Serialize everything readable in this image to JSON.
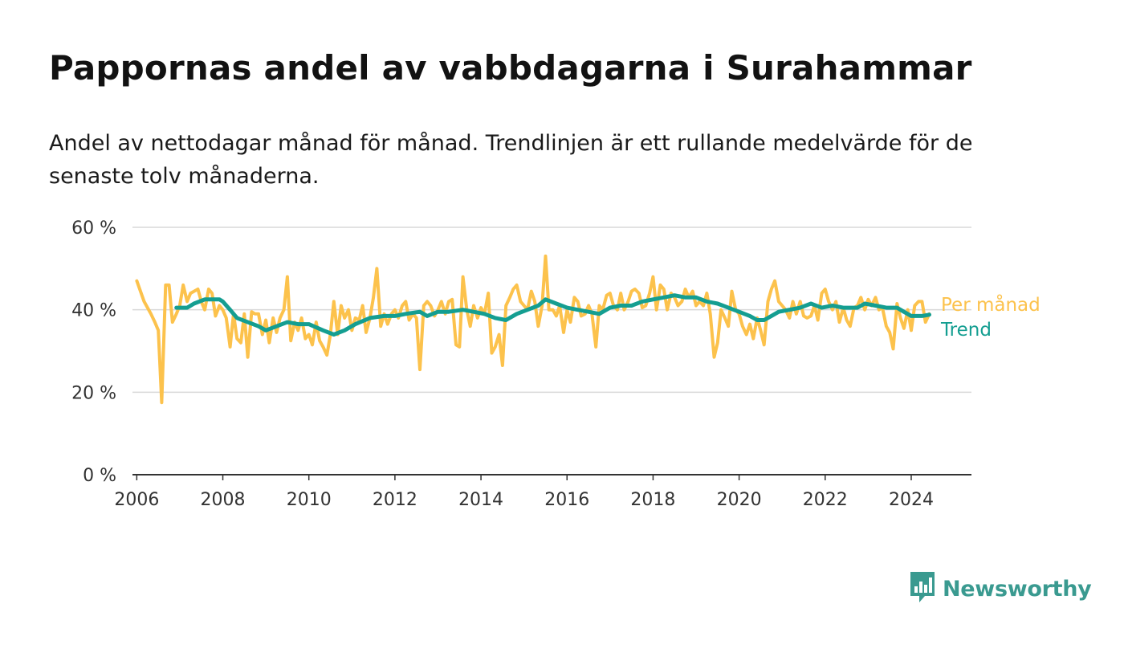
{
  "title": "Pappornas andel av vabbdagarna i Surahammar",
  "subtitle": "Andel av nettodagar månad för månad. Trendlinjen är ett rullande medelvärde för de senaste tolv månaderna.",
  "brand": {
    "name": "Newsworthy",
    "icon": "newsworthy-logo-icon",
    "color": "#3a9a90"
  },
  "chart_data": {
    "type": "line",
    "xlim": [
      2005.9,
      2025.4
    ],
    "ylim": [
      0,
      60
    ],
    "y_ticks": [
      0,
      20,
      40,
      60
    ],
    "y_tick_labels": [
      "0 %",
      "20 %",
      "40 %",
      "60 %"
    ],
    "x_ticks": [
      2006,
      2008,
      2010,
      2012,
      2014,
      2016,
      2018,
      2020,
      2022,
      2024
    ],
    "x_tick_labels": [
      "2006",
      "2008",
      "2010",
      "2012",
      "2014",
      "2016",
      "2018",
      "2020",
      "2022",
      "2024"
    ],
    "grid": true,
    "legend": "right, at line ends",
    "series": [
      {
        "name": "Per månad",
        "color": "#fcc24c",
        "points": [
          [
            2006.0,
            47.0
          ],
          [
            2006.17,
            42.0
          ],
          [
            2006.33,
            39.0
          ],
          [
            2006.42,
            37.0
          ],
          [
            2006.5,
            35.0
          ],
          [
            2006.58,
            17.5
          ],
          [
            2006.67,
            46.0
          ],
          [
            2006.75,
            46.0
          ],
          [
            2006.83,
            37.0
          ],
          [
            2006.92,
            39.0
          ],
          [
            2007.0,
            41.0
          ],
          [
            2007.08,
            46.0
          ],
          [
            2007.17,
            42.0
          ],
          [
            2007.25,
            44.0
          ],
          [
            2007.42,
            45.0
          ],
          [
            2007.5,
            42.0
          ],
          [
            2007.58,
            40.0
          ],
          [
            2007.67,
            45.0
          ],
          [
            2007.75,
            44.0
          ],
          [
            2007.83,
            38.5
          ],
          [
            2007.92,
            41.0
          ],
          [
            2008.0,
            40.0
          ],
          [
            2008.08,
            38.0
          ],
          [
            2008.17,
            31.0
          ],
          [
            2008.25,
            39.0
          ],
          [
            2008.33,
            33.0
          ],
          [
            2008.42,
            32.0
          ],
          [
            2008.5,
            39.0
          ],
          [
            2008.58,
            28.5
          ],
          [
            2008.67,
            39.5
          ],
          [
            2008.75,
            39.0
          ],
          [
            2008.83,
            39.0
          ],
          [
            2008.92,
            34.0
          ],
          [
            2009.0,
            37.5
          ],
          [
            2009.08,
            32.0
          ],
          [
            2009.17,
            38.0
          ],
          [
            2009.25,
            34.5
          ],
          [
            2009.33,
            38.0
          ],
          [
            2009.42,
            40.0
          ],
          [
            2009.5,
            48.0
          ],
          [
            2009.58,
            32.5
          ],
          [
            2009.67,
            37.0
          ],
          [
            2009.75,
            35.0
          ],
          [
            2009.83,
            38.0
          ],
          [
            2009.92,
            33.0
          ],
          [
            2010.0,
            34.0
          ],
          [
            2010.08,
            31.5
          ],
          [
            2010.17,
            37.0
          ],
          [
            2010.25,
            32.5
          ],
          [
            2010.33,
            31.0
          ],
          [
            2010.42,
            29.0
          ],
          [
            2010.5,
            34.0
          ],
          [
            2010.58,
            42.0
          ],
          [
            2010.67,
            34.0
          ],
          [
            2010.75,
            41.0
          ],
          [
            2010.83,
            38.0
          ],
          [
            2010.92,
            40.0
          ],
          [
            2011.0,
            35.0
          ],
          [
            2011.08,
            38.0
          ],
          [
            2011.17,
            37.5
          ],
          [
            2011.25,
            41.0
          ],
          [
            2011.33,
            34.5
          ],
          [
            2011.42,
            38.0
          ],
          [
            2011.5,
            43.0
          ],
          [
            2011.58,
            50.0
          ],
          [
            2011.67,
            36.0
          ],
          [
            2011.75,
            39.0
          ],
          [
            2011.83,
            36.5
          ],
          [
            2011.92,
            39.0
          ],
          [
            2012.0,
            40.0
          ],
          [
            2012.08,
            38.0
          ],
          [
            2012.17,
            41.0
          ],
          [
            2012.25,
            42.0
          ],
          [
            2012.33,
            37.5
          ],
          [
            2012.42,
            39.0
          ],
          [
            2012.5,
            38.0
          ],
          [
            2012.58,
            25.5
          ],
          [
            2012.67,
            41.0
          ],
          [
            2012.75,
            42.0
          ],
          [
            2012.83,
            41.0
          ],
          [
            2012.92,
            38.5
          ],
          [
            2013.0,
            40.0
          ],
          [
            2013.08,
            42.0
          ],
          [
            2013.17,
            39.0
          ],
          [
            2013.25,
            42.0
          ],
          [
            2013.33,
            42.5
          ],
          [
            2013.42,
            31.5
          ],
          [
            2013.5,
            31.0
          ],
          [
            2013.58,
            48.0
          ],
          [
            2013.67,
            40.0
          ],
          [
            2013.75,
            36.0
          ],
          [
            2013.83,
            41.0
          ],
          [
            2013.92,
            38.0
          ],
          [
            2014.0,
            40.5
          ],
          [
            2014.08,
            39.0
          ],
          [
            2014.17,
            44.0
          ],
          [
            2014.25,
            29.5
          ],
          [
            2014.33,
            31.0
          ],
          [
            2014.42,
            34.0
          ],
          [
            2014.5,
            26.5
          ],
          [
            2014.58,
            41.0
          ],
          [
            2014.67,
            43.0
          ],
          [
            2014.75,
            45.0
          ],
          [
            2014.83,
            46.0
          ],
          [
            2014.92,
            42.0
          ],
          [
            2015.0,
            41.0
          ],
          [
            2015.08,
            40.0
          ],
          [
            2015.17,
            44.5
          ],
          [
            2015.25,
            42.0
          ],
          [
            2015.33,
            36.0
          ],
          [
            2015.42,
            41.0
          ],
          [
            2015.5,
            53.0
          ],
          [
            2015.58,
            40.0
          ],
          [
            2015.67,
            40.0
          ],
          [
            2015.75,
            38.5
          ],
          [
            2015.83,
            41.0
          ],
          [
            2015.92,
            34.5
          ],
          [
            2016.0,
            40.0
          ],
          [
            2016.08,
            37.0
          ],
          [
            2016.17,
            43.0
          ],
          [
            2016.25,
            42.0
          ],
          [
            2016.33,
            38.5
          ],
          [
            2016.42,
            39.0
          ],
          [
            2016.5,
            41.0
          ],
          [
            2016.58,
            39.0
          ],
          [
            2016.67,
            31.0
          ],
          [
            2016.75,
            41.0
          ],
          [
            2016.83,
            40.0
          ],
          [
            2016.92,
            43.5
          ],
          [
            2017.0,
            44.0
          ],
          [
            2017.08,
            41.0
          ],
          [
            2017.17,
            40.0
          ],
          [
            2017.25,
            44.0
          ],
          [
            2017.33,
            40.0
          ],
          [
            2017.42,
            42.0
          ],
          [
            2017.5,
            44.5
          ],
          [
            2017.58,
            45.0
          ],
          [
            2017.67,
            44.0
          ],
          [
            2017.75,
            40.5
          ],
          [
            2017.83,
            41.0
          ],
          [
            2017.92,
            44.0
          ],
          [
            2018.0,
            48.0
          ],
          [
            2018.08,
            40.0
          ],
          [
            2018.17,
            46.0
          ],
          [
            2018.25,
            45.0
          ],
          [
            2018.33,
            40.0
          ],
          [
            2018.42,
            44.0
          ],
          [
            2018.5,
            43.0
          ],
          [
            2018.58,
            41.0
          ],
          [
            2018.67,
            42.0
          ],
          [
            2018.75,
            45.0
          ],
          [
            2018.83,
            43.0
          ],
          [
            2018.92,
            44.5
          ],
          [
            2019.0,
            41.0
          ],
          [
            2019.08,
            42.0
          ],
          [
            2019.17,
            41.0
          ],
          [
            2019.25,
            44.0
          ],
          [
            2019.33,
            39.0
          ],
          [
            2019.42,
            28.5
          ],
          [
            2019.5,
            32.0
          ],
          [
            2019.58,
            40.0
          ],
          [
            2019.67,
            38.0
          ],
          [
            2019.75,
            36.0
          ],
          [
            2019.83,
            44.5
          ],
          [
            2019.92,
            40.0
          ],
          [
            2020.0,
            39.0
          ],
          [
            2020.08,
            36.0
          ],
          [
            2020.17,
            34.0
          ],
          [
            2020.25,
            36.5
          ],
          [
            2020.33,
            33.0
          ],
          [
            2020.42,
            38.0
          ],
          [
            2020.5,
            35.0
          ],
          [
            2020.58,
            31.5
          ],
          [
            2020.67,
            42.0
          ],
          [
            2020.75,
            45.0
          ],
          [
            2020.83,
            47.0
          ],
          [
            2020.92,
            42.0
          ],
          [
            2021.0,
            41.0
          ],
          [
            2021.08,
            40.0
          ],
          [
            2021.17,
            38.0
          ],
          [
            2021.25,
            42.0
          ],
          [
            2021.33,
            39.0
          ],
          [
            2021.42,
            42.0
          ],
          [
            2021.5,
            38.5
          ],
          [
            2021.58,
            38.0
          ],
          [
            2021.67,
            38.5
          ],
          [
            2021.75,
            41.0
          ],
          [
            2021.83,
            37.5
          ],
          [
            2021.92,
            44.0
          ],
          [
            2022.0,
            45.0
          ],
          [
            2022.08,
            42.0
          ],
          [
            2022.17,
            40.0
          ],
          [
            2022.25,
            42.0
          ],
          [
            2022.33,
            37.0
          ],
          [
            2022.42,
            40.5
          ],
          [
            2022.5,
            37.5
          ],
          [
            2022.58,
            36.0
          ],
          [
            2022.67,
            40.5
          ],
          [
            2022.75,
            41.0
          ],
          [
            2022.83,
            43.0
          ],
          [
            2022.92,
            40.0
          ],
          [
            2023.0,
            42.5
          ],
          [
            2023.08,
            41.0
          ],
          [
            2023.17,
            43.0
          ],
          [
            2023.25,
            40.0
          ],
          [
            2023.33,
            40.5
          ],
          [
            2023.42,
            36.0
          ],
          [
            2023.5,
            34.5
          ],
          [
            2023.58,
            30.5
          ],
          [
            2023.67,
            41.5
          ],
          [
            2023.75,
            38.0
          ],
          [
            2023.83,
            35.5
          ],
          [
            2023.92,
            40.0
          ],
          [
            2024.0,
            35.0
          ],
          [
            2024.08,
            41.0
          ],
          [
            2024.17,
            42.0
          ],
          [
            2024.25,
            42.0
          ],
          [
            2024.33,
            37.0
          ],
          [
            2024.42,
            39.0
          ]
        ]
      },
      {
        "name": "Trend",
        "color": "#149e91",
        "points": [
          [
            2006.92,
            40.5
          ],
          [
            2007.17,
            40.5
          ],
          [
            2007.33,
            41.5
          ],
          [
            2007.58,
            42.5
          ],
          [
            2007.92,
            42.5
          ],
          [
            2008.0,
            42.0
          ],
          [
            2008.17,
            40.0
          ],
          [
            2008.33,
            38.0
          ],
          [
            2008.58,
            37.0
          ],
          [
            2008.83,
            36.0
          ],
          [
            2009.0,
            35.0
          ],
          [
            2009.25,
            36.0
          ],
          [
            2009.5,
            37.0
          ],
          [
            2009.75,
            36.5
          ],
          [
            2010.0,
            36.5
          ],
          [
            2010.33,
            35.0
          ],
          [
            2010.58,
            34.0
          ],
          [
            2010.83,
            35.0
          ],
          [
            2011.08,
            36.5
          ],
          [
            2011.42,
            38.0
          ],
          [
            2011.75,
            38.5
          ],
          [
            2012.0,
            38.5
          ],
          [
            2012.25,
            39.0
          ],
          [
            2012.58,
            39.5
          ],
          [
            2012.75,
            38.5
          ],
          [
            2013.0,
            39.5
          ],
          [
            2013.25,
            39.5
          ],
          [
            2013.58,
            40.0
          ],
          [
            2013.83,
            39.5
          ],
          [
            2014.08,
            39.0
          ],
          [
            2014.33,
            38.0
          ],
          [
            2014.58,
            37.5
          ],
          [
            2014.83,
            39.0
          ],
          [
            2015.08,
            40.0
          ],
          [
            2015.33,
            41.0
          ],
          [
            2015.5,
            42.5
          ],
          [
            2015.75,
            41.5
          ],
          [
            2016.0,
            40.5
          ],
          [
            2016.25,
            40.0
          ],
          [
            2016.5,
            39.5
          ],
          [
            2016.75,
            39.0
          ],
          [
            2017.0,
            40.5
          ],
          [
            2017.25,
            41.0
          ],
          [
            2017.5,
            41.0
          ],
          [
            2017.75,
            42.0
          ],
          [
            2018.0,
            42.5
          ],
          [
            2018.25,
            43.0
          ],
          [
            2018.5,
            43.5
          ],
          [
            2018.75,
            43.0
          ],
          [
            2019.0,
            43.0
          ],
          [
            2019.25,
            42.0
          ],
          [
            2019.5,
            41.5
          ],
          [
            2019.75,
            40.5
          ],
          [
            2020.0,
            39.5
          ],
          [
            2020.25,
            38.5
          ],
          [
            2020.42,
            37.5
          ],
          [
            2020.58,
            37.5
          ],
          [
            2020.75,
            38.5
          ],
          [
            2020.92,
            39.5
          ],
          [
            2021.17,
            40.0
          ],
          [
            2021.42,
            40.5
          ],
          [
            2021.67,
            41.5
          ],
          [
            2021.92,
            40.5
          ],
          [
            2022.17,
            41.0
          ],
          [
            2022.42,
            40.5
          ],
          [
            2022.75,
            40.5
          ],
          [
            2022.92,
            41.5
          ],
          [
            2023.17,
            41.0
          ],
          [
            2023.42,
            40.5
          ],
          [
            2023.67,
            40.5
          ],
          [
            2023.83,
            39.5
          ],
          [
            2024.0,
            38.5
          ],
          [
            2024.25,
            38.5
          ],
          [
            2024.42,
            38.8
          ]
        ]
      }
    ]
  }
}
